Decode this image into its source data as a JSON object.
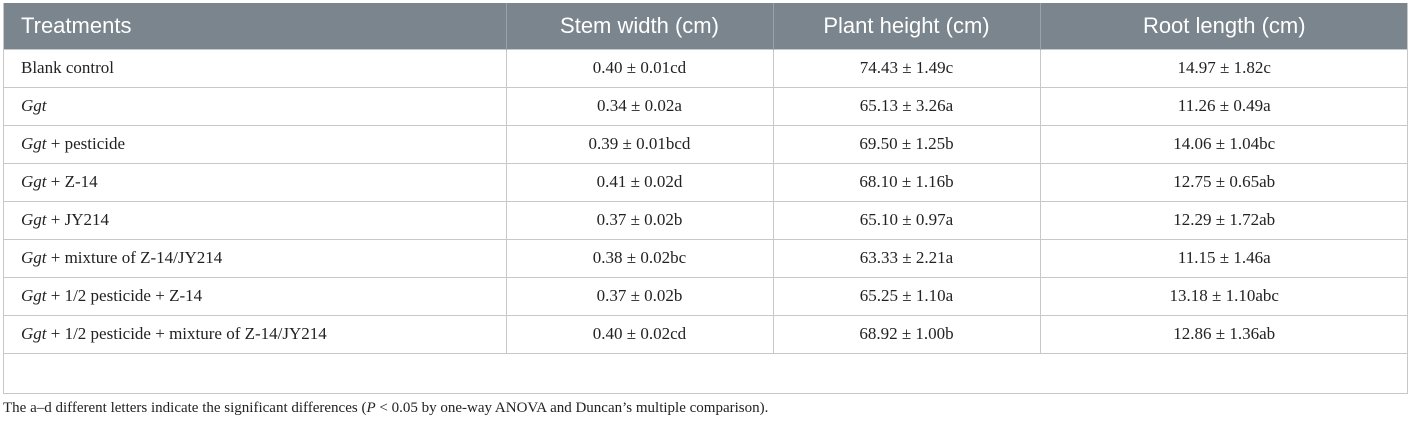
{
  "table": {
    "headers": [
      "Treatments",
      "Stem width (cm)",
      "Plant height (cm)",
      "Root length (cm)"
    ],
    "rows": [
      {
        "ital": "",
        "rest": "Blank control",
        "stem": "0.40 ± 0.01cd",
        "height": "74.43 ± 1.49c",
        "root": "14.97 ± 1.82c"
      },
      {
        "ital": "Ggt",
        "rest": "",
        "stem": "0.34 ± 0.02a",
        "height": "65.13 ± 3.26a",
        "root": "11.26 ± 0.49a"
      },
      {
        "ital": "Ggt",
        "rest": " + pesticide",
        "stem": "0.39 ± 0.01bcd",
        "height": "69.50 ± 1.25b",
        "root": "14.06 ± 1.04bc"
      },
      {
        "ital": "Ggt",
        "rest": " + Z-14",
        "stem": "0.41 ± 0.02d",
        "height": "68.10 ± 1.16b",
        "root": "12.75 ± 0.65ab"
      },
      {
        "ital": "Ggt",
        "rest": " + JY214",
        "stem": "0.37 ± 0.02b",
        "height": "65.10 ± 0.97a",
        "root": "12.29 ± 1.72ab"
      },
      {
        "ital": "Ggt",
        "rest": " + mixture of Z-14/JY214",
        "stem": "0.38 ± 0.02bc",
        "height": "63.33 ± 2.21a",
        "root": "11.15 ± 1.46a"
      },
      {
        "ital": "Ggt",
        "rest": " + 1/2 pesticide + Z-14",
        "stem": "0.37 ± 0.02b",
        "height": "65.25 ± 1.10a",
        "root": "13.18 ± 1.10abc"
      },
      {
        "ital": "Ggt",
        "rest": " + 1/2 pesticide + mixture of Z-14/JY214",
        "stem": "0.40 ± 0.02cd",
        "height": "68.92 ± 1.00b",
        "root": "12.86 ± 1.36ab"
      }
    ]
  },
  "footnote": {
    "pre": "The a–d different letters indicate the significant differences (",
    "p": "P",
    "post": " < 0.05 by one-way ANOVA and Duncan’s multiple comparison)."
  }
}
